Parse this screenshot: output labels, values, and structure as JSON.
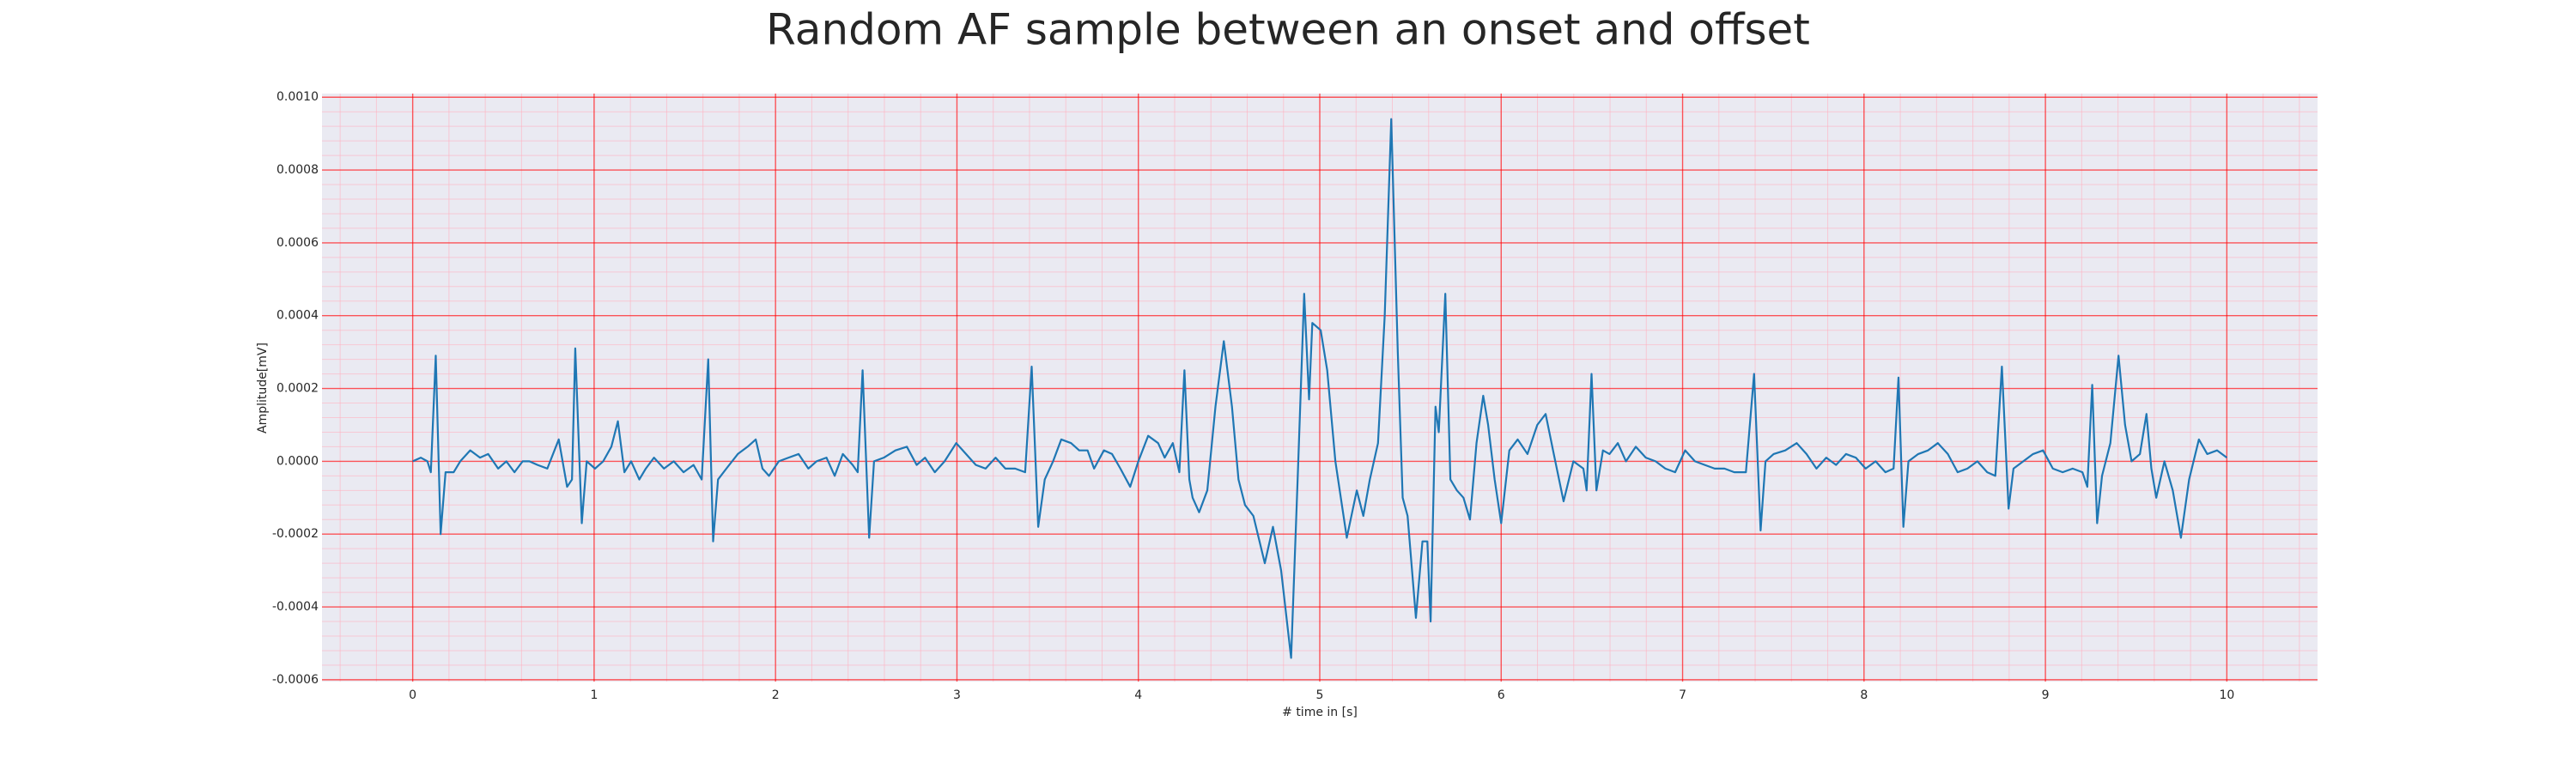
{
  "chart_data": {
    "type": "line",
    "title": "Random AF sample between an onset and offset",
    "x_label": "# time in [s]",
    "y_label": "Amplitude[mV]",
    "xlim": [
      -0.5,
      10.5
    ],
    "ylim": [
      -0.000605,
      0.00101
    ],
    "xticks": [
      0,
      1,
      2,
      3,
      4,
      5,
      6,
      7,
      8,
      9,
      10
    ],
    "yticks": [
      {
        "value": -0.0006,
        "label": "-0.0006"
      },
      {
        "value": -0.0004,
        "label": "-0.0004"
      },
      {
        "value": -0.0002,
        "label": "-0.0002"
      },
      {
        "value": 0,
        "label": "0.0000"
      },
      {
        "value": 0.0002,
        "label": "0.0002"
      },
      {
        "value": 0.0004,
        "label": "0.0004"
      },
      {
        "value": 0.0006,
        "label": "0.0006"
      },
      {
        "value": 0.0008,
        "label": "0.0008"
      },
      {
        "value": 0.001,
        "label": "0.0010"
      }
    ],
    "grid": true,
    "minor_grid": true,
    "grid_color": "#ff0000",
    "minor_grid_color": "#ffb0c0",
    "background": "#eaeaf2",
    "x": [
      0,
      0.045,
      0.081,
      0.1,
      0.127,
      0.154,
      0.181,
      0.226,
      0.262,
      0.317,
      0.371,
      0.416,
      0.471,
      0.516,
      0.561,
      0.606,
      0.643,
      0.688,
      0.742,
      0.805,
      0.851,
      0.878,
      0.896,
      0.932,
      0.959,
      1.005,
      1.05,
      1.095,
      1.131,
      1.167,
      1.204,
      1.249,
      1.285,
      1.33,
      1.385,
      1.439,
      1.493,
      1.548,
      1.593,
      1.629,
      1.656,
      1.683,
      1.729,
      1.792,
      1.846,
      1.891,
      1.928,
      1.964,
      2.018,
      2.072,
      2.127,
      2.181,
      2.226,
      2.281,
      2.326,
      2.371,
      2.425,
      2.453,
      2.48,
      2.516,
      2.543,
      2.597,
      2.661,
      2.724,
      2.778,
      2.824,
      2.878,
      2.932,
      2.996,
      3.05,
      3.104,
      3.158,
      3.213,
      3.267,
      3.321,
      3.376,
      3.412,
      3.448,
      3.484,
      3.53,
      3.575,
      3.629,
      3.674,
      3.72,
      3.756,
      3.81,
      3.855,
      3.901,
      3.955,
      4.0,
      4.054,
      4.109,
      4.145,
      4.19,
      4.226,
      4.254,
      4.281,
      4.299,
      4.335,
      4.38,
      4.425,
      4.471,
      4.516,
      4.552,
      4.588,
      4.634,
      4.697,
      4.742,
      4.787,
      4.842,
      4.878,
      4.914,
      4.941,
      4.959,
      5.005,
      5.041,
      5.086,
      5.149,
      5.204,
      5.24,
      5.276,
      5.321,
      5.358,
      5.394,
      5.43,
      5.457,
      5.484,
      5.53,
      5.566,
      5.593,
      5.611,
      5.638,
      5.656,
      5.692,
      5.72,
      5.756,
      5.792,
      5.828,
      5.864,
      5.901,
      5.928,
      5.964,
      6.0,
      6.045,
      6.091,
      6.145,
      6.199,
      6.245,
      6.29,
      6.344,
      6.398,
      6.453,
      6.471,
      6.498,
      6.525,
      6.561,
      6.597,
      6.643,
      6.688,
      6.742,
      6.797,
      6.851,
      6.905,
      6.959,
      7.014,
      7.068,
      7.122,
      7.177,
      7.231,
      7.285,
      7.349,
      7.394,
      7.43,
      7.457,
      7.502,
      7.566,
      7.629,
      7.683,
      7.738,
      7.792,
      7.846,
      7.901,
      7.955,
      8.009,
      8.064,
      8.118,
      8.163,
      8.19,
      8.217,
      8.245,
      8.299,
      8.353,
      8.407,
      8.462,
      8.516,
      8.57,
      8.625,
      8.679,
      8.724,
      8.76,
      8.797,
      8.824,
      8.878,
      8.932,
      8.987,
      9.041,
      9.095,
      9.15,
      9.204,
      9.231,
      9.258,
      9.285,
      9.312,
      9.358,
      9.403,
      9.439,
      9.475,
      9.521,
      9.557,
      9.584,
      9.611,
      9.656,
      9.702,
      9.747,
      9.792,
      9.846,
      9.892,
      9.946,
      10.0
    ],
    "series": [
      {
        "color": "#1f77b4",
        "values": [
          0,
          1e-05,
          0,
          -3e-05,
          0.00029,
          -0.0002,
          -3e-05,
          -3e-05,
          0,
          3e-05,
          1e-05,
          2e-05,
          -2e-05,
          0,
          -3e-05,
          0,
          0,
          -1e-05,
          -2e-05,
          6e-05,
          -7e-05,
          -5e-05,
          0.00031,
          -0.00017,
          0,
          -2e-05,
          0,
          4e-05,
          0.00011,
          -3e-05,
          0,
          -5e-05,
          -2e-05,
          1e-05,
          -2e-05,
          0,
          -3e-05,
          -1e-05,
          -5e-05,
          0.00028,
          -0.00022,
          -5e-05,
          -2e-05,
          2e-05,
          4e-05,
          6e-05,
          -2e-05,
          -4e-05,
          0,
          1e-05,
          2e-05,
          -2e-05,
          0,
          1e-05,
          -4e-05,
          2e-05,
          -1e-05,
          -3e-05,
          0.00025,
          -0.00021,
          0,
          1e-05,
          3e-05,
          4e-05,
          -1e-05,
          1e-05,
          -3e-05,
          0,
          5e-05,
          2e-05,
          -1e-05,
          -2e-05,
          1e-05,
          -2e-05,
          -2e-05,
          -3e-05,
          0.00026,
          -0.00018,
          -5e-05,
          0,
          6e-05,
          5e-05,
          3e-05,
          3e-05,
          -2e-05,
          3e-05,
          2e-05,
          -2e-05,
          -7e-05,
          0,
          7e-05,
          5e-05,
          1e-05,
          5e-05,
          -3e-05,
          0.00025,
          -5e-05,
          -0.0001,
          -0.00014,
          -8e-05,
          0.00015,
          0.00033,
          0.00015,
          -5e-05,
          -0.00012,
          -0.00015,
          -0.00028,
          -0.00018,
          -0.0003,
          -0.00054,
          -5e-05,
          0.00046,
          0.00017,
          0.00038,
          0.00036,
          0.00025,
          0,
          -0.00021,
          -8e-05,
          -0.00015,
          -5e-05,
          5e-05,
          0.0004,
          0.00094,
          0.0003,
          -0.0001,
          -0.00015,
          -0.00043,
          -0.00022,
          -0.00022,
          -0.00044,
          0.00015,
          8e-05,
          0.00046,
          -5e-05,
          -8e-05,
          -0.0001,
          -0.00016,
          5e-05,
          0.00018,
          0.0001,
          -5e-05,
          -0.00017,
          3e-05,
          6e-05,
          2e-05,
          0.0001,
          0.00013,
          2e-05,
          -0.00011,
          0,
          -2e-05,
          -8e-05,
          0.00024,
          -8e-05,
          3e-05,
          2e-05,
          5e-05,
          0,
          4e-05,
          1e-05,
          0,
          -2e-05,
          -3e-05,
          3e-05,
          0,
          -1e-05,
          -2e-05,
          -2e-05,
          -3e-05,
          -3e-05,
          0.00024,
          -0.00019,
          0,
          2e-05,
          3e-05,
          5e-05,
          2e-05,
          -2e-05,
          1e-05,
          -1e-05,
          2e-05,
          1e-05,
          -2e-05,
          0,
          -3e-05,
          -2e-05,
          0.00023,
          -0.00018,
          0,
          2e-05,
          3e-05,
          5e-05,
          2e-05,
          -3e-05,
          -2e-05,
          0,
          -3e-05,
          -4e-05,
          0.00026,
          -0.00013,
          -2e-05,
          0,
          2e-05,
          3e-05,
          -2e-05,
          -3e-05,
          -2e-05,
          -3e-05,
          -7e-05,
          0.00021,
          -0.00017,
          -4e-05,
          5e-05,
          0.00029,
          0.0001,
          0,
          2e-05,
          0.00013,
          -2e-05,
          -0.0001,
          0,
          -8e-05,
          -0.00021,
          -5e-05,
          6e-05,
          2e-05,
          3e-05,
          1e-05
        ]
      }
    ]
  }
}
